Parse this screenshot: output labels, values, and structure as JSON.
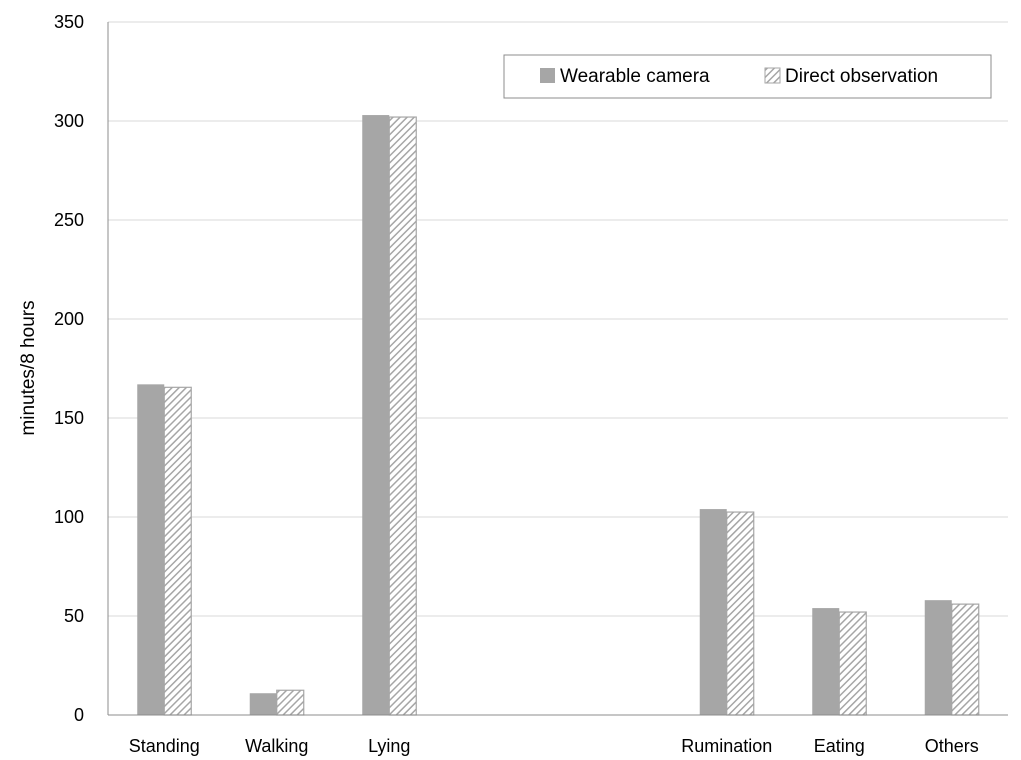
{
  "chart_data": {
    "type": "bar",
    "title": "",
    "xlabel": "",
    "ylabel": "minutes/8 hours",
    "ylim": [
      0,
      350
    ],
    "yticks": [
      0,
      50,
      100,
      150,
      200,
      250,
      300,
      350
    ],
    "grid": true,
    "legend_position": "top-right",
    "categories": [
      "Standing",
      "Walking",
      "Lying",
      "",
      "",
      "Rumination",
      "Eating",
      "Others"
    ],
    "series": [
      {
        "name": "Wearable camera",
        "style": "solid",
        "color": "#a6a6a6",
        "values": [
          167,
          11,
          303,
          null,
          null,
          104,
          54,
          58
        ]
      },
      {
        "name": "Direct observation",
        "style": "hatched",
        "color": "#a6a6a6",
        "values": [
          165.5,
          12.5,
          302,
          null,
          null,
          102.5,
          52,
          56
        ]
      }
    ]
  }
}
